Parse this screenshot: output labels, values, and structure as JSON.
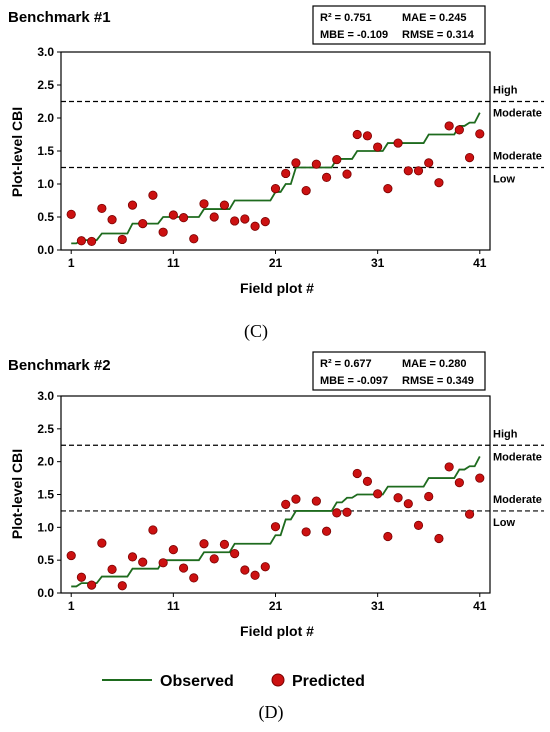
{
  "chart_data": [
    {
      "type": "line+scatter",
      "title": "Benchmark #1",
      "panel_label": "(C)",
      "stats": {
        "r2": "R² = 0.751",
        "mae": "MAE = 0.245",
        "mbe": "MBE = -0.109",
        "rmse": "RMSE = 0.314"
      },
      "xlabel": "Field plot #",
      "ylabel": "Plot-level CBI",
      "xticks": [
        1,
        11,
        21,
        31,
        41
      ],
      "yticks": [
        "0.0",
        "0.5",
        "1.0",
        "1.5",
        "2.0",
        "2.5",
        "3.0"
      ],
      "xlim": [
        0,
        42
      ],
      "ylim": [
        0,
        3.0
      ],
      "thresholds": [
        {
          "y": 2.25,
          "label_above": "High",
          "label_below": "Moderate"
        },
        {
          "y": 1.25,
          "label_above": "Moderate",
          "label_below": "Low"
        }
      ],
      "x": [
        1,
        2,
        3,
        4,
        5,
        6,
        7,
        8,
        9,
        10,
        11,
        12,
        13,
        14,
        15,
        16,
        17,
        18,
        19,
        20,
        21,
        22,
        23,
        24,
        25,
        26,
        27,
        28,
        29,
        30,
        31,
        32,
        33,
        34,
        35,
        36,
        37,
        38,
        39,
        40,
        41
      ],
      "observed": [
        0.1,
        0.15,
        0.15,
        0.25,
        0.25,
        0.25,
        0.4,
        0.4,
        0.4,
        0.5,
        0.5,
        0.5,
        0.5,
        0.62,
        0.62,
        0.62,
        0.75,
        0.75,
        0.75,
        0.75,
        0.88,
        1.0,
        1.25,
        1.25,
        1.25,
        1.25,
        1.38,
        1.38,
        1.5,
        1.5,
        1.5,
        1.62,
        1.62,
        1.62,
        1.62,
        1.75,
        1.75,
        1.75,
        1.88,
        1.93,
        2.08
      ],
      "predicted": [
        0.54,
        0.14,
        0.13,
        0.63,
        0.46,
        0.16,
        0.68,
        0.4,
        0.83,
        0.27,
        0.53,
        0.49,
        0.17,
        0.7,
        0.5,
        0.68,
        0.44,
        0.47,
        0.36,
        0.43,
        0.93,
        1.16,
        1.32,
        0.9,
        1.3,
        1.1,
        1.37,
        1.15,
        1.75,
        1.73,
        1.56,
        0.93,
        1.62,
        1.2,
        1.2,
        1.32,
        1.02,
        1.88,
        1.82,
        1.4,
        1.76
      ]
    },
    {
      "type": "line+scatter",
      "title": "Benchmark #2",
      "panel_label": "(D)",
      "stats": {
        "r2": "R² = 0.677",
        "mae": "MAE = 0.280",
        "mbe": "MBE = -0.097",
        "rmse": "RMSE = 0.349"
      },
      "xlabel": "Field plot #",
      "ylabel": "Plot-level CBI",
      "xticks": [
        1,
        11,
        21,
        31,
        41
      ],
      "yticks": [
        "0.0",
        "0.5",
        "1.0",
        "1.5",
        "2.0",
        "2.5",
        "3.0"
      ],
      "xlim": [
        0,
        42
      ],
      "ylim": [
        0,
        3.0
      ],
      "thresholds": [
        {
          "y": 2.25,
          "label_above": "High",
          "label_below": "Moderate"
        },
        {
          "y": 1.25,
          "label_above": "Moderate",
          "label_below": "Low"
        }
      ],
      "x": [
        1,
        2,
        3,
        4,
        5,
        6,
        7,
        8,
        9,
        10,
        11,
        12,
        13,
        14,
        15,
        16,
        17,
        18,
        19,
        20,
        21,
        22,
        23,
        24,
        25,
        26,
        27,
        28,
        29,
        30,
        31,
        32,
        33,
        34,
        35,
        36,
        37,
        38,
        39,
        40,
        41
      ],
      "observed": [
        0.1,
        0.15,
        0.15,
        0.25,
        0.25,
        0.25,
        0.37,
        0.37,
        0.37,
        0.5,
        0.5,
        0.5,
        0.5,
        0.62,
        0.62,
        0.62,
        0.75,
        0.75,
        0.75,
        0.75,
        0.88,
        1.12,
        1.25,
        1.25,
        1.25,
        1.25,
        1.38,
        1.45,
        1.5,
        1.5,
        1.5,
        1.62,
        1.62,
        1.62,
        1.62,
        1.75,
        1.75,
        1.75,
        1.88,
        1.93,
        2.08
      ],
      "predicted": [
        0.57,
        0.24,
        0.12,
        0.76,
        0.36,
        0.11,
        0.55,
        0.47,
        0.96,
        0.46,
        0.66,
        0.38,
        0.23,
        0.75,
        0.52,
        0.74,
        0.6,
        0.35,
        0.27,
        0.4,
        1.01,
        1.35,
        1.43,
        0.93,
        1.4,
        0.94,
        1.22,
        1.23,
        1.82,
        1.7,
        1.51,
        0.86,
        1.45,
        1.36,
        1.03,
        1.47,
        0.83,
        1.92,
        1.68,
        1.2,
        1.75
      ]
    }
  ],
  "legend": {
    "observed_label": "Observed",
    "predicted_label": "Predicted"
  },
  "colors": {
    "observed_line": "#1e6b1e",
    "predicted_fill": "#cc1111",
    "predicted_stroke": "#7a0000"
  }
}
